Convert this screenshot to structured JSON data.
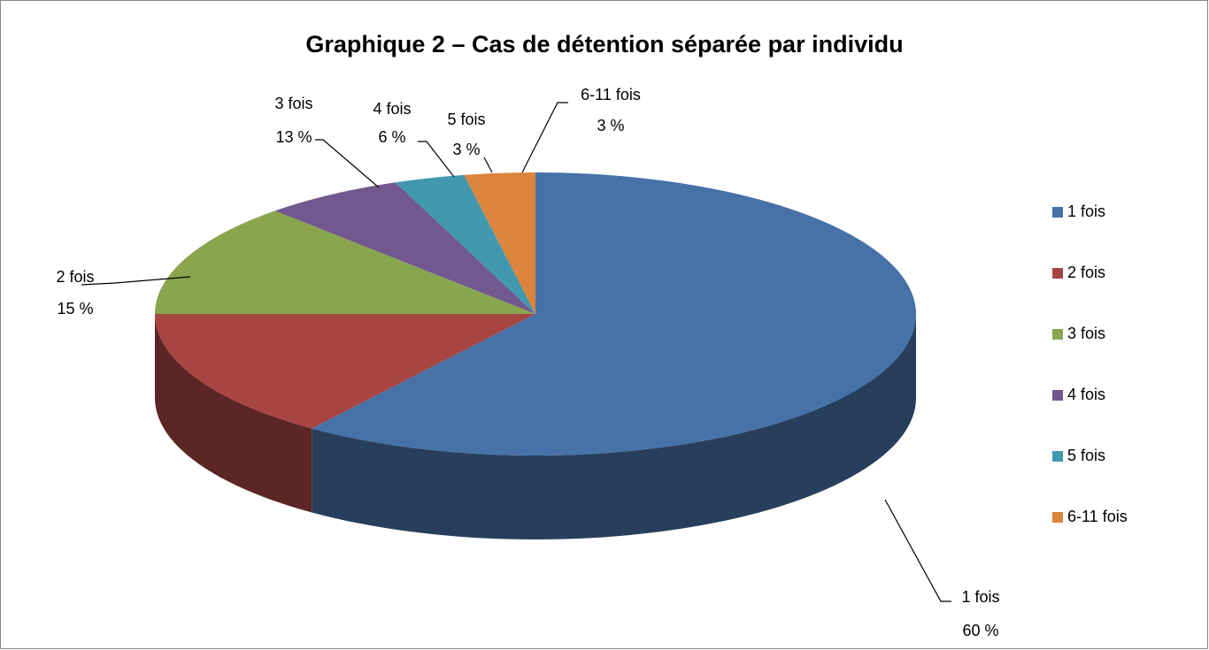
{
  "chart_data": {
    "type": "pie",
    "title": "Graphique 2 – Cas de détention séparée par individu",
    "categories": [
      "1 fois",
      "2 fois",
      "3 fois",
      "4 fois",
      "5 fois",
      "6-11 fois"
    ],
    "values": [
      60,
      15,
      13,
      6,
      3,
      3
    ],
    "value_labels": [
      "60 %",
      "15 %",
      "13 %",
      "6 %",
      "3 %",
      "3 %"
    ],
    "colors": [
      "#4672a8",
      "#a74542",
      "#89a54e",
      "#71588f",
      "#4198af",
      "#db843d"
    ],
    "legend": "right"
  }
}
